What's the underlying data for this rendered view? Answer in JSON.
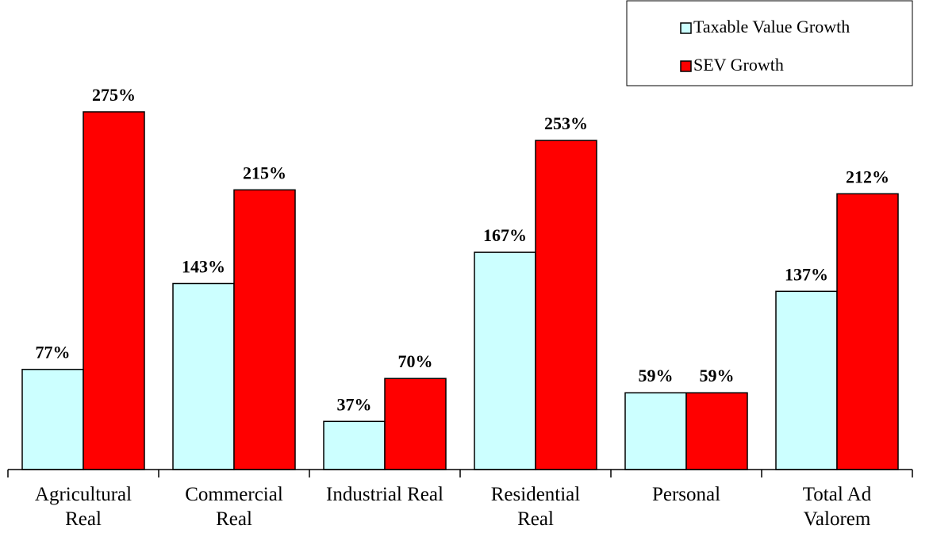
{
  "chart_data": {
    "type": "bar",
    "categories": [
      "Agricultural Real",
      "Commercial Real",
      "Industrial Real",
      "Residential Real",
      "Personal",
      "Total Ad Valorem"
    ],
    "series": [
      {
        "name": "Taxable Value Growth",
        "color": "#ccffff",
        "values": [
          77,
          143,
          37,
          167,
          59,
          137
        ],
        "value_labels": [
          "77%",
          "143%",
          "37%",
          "167%",
          "59%",
          "137%"
        ]
      },
      {
        "name": "SEV Growth",
        "color": "#ff0000",
        "values": [
          275,
          215,
          70,
          253,
          59,
          212
        ],
        "value_labels": [
          "275%",
          "215%",
          "70%",
          "253%",
          "59%",
          "212%"
        ]
      }
    ],
    "ylim": [
      0,
      300
    ],
    "legend": "top-right",
    "grid": false
  }
}
